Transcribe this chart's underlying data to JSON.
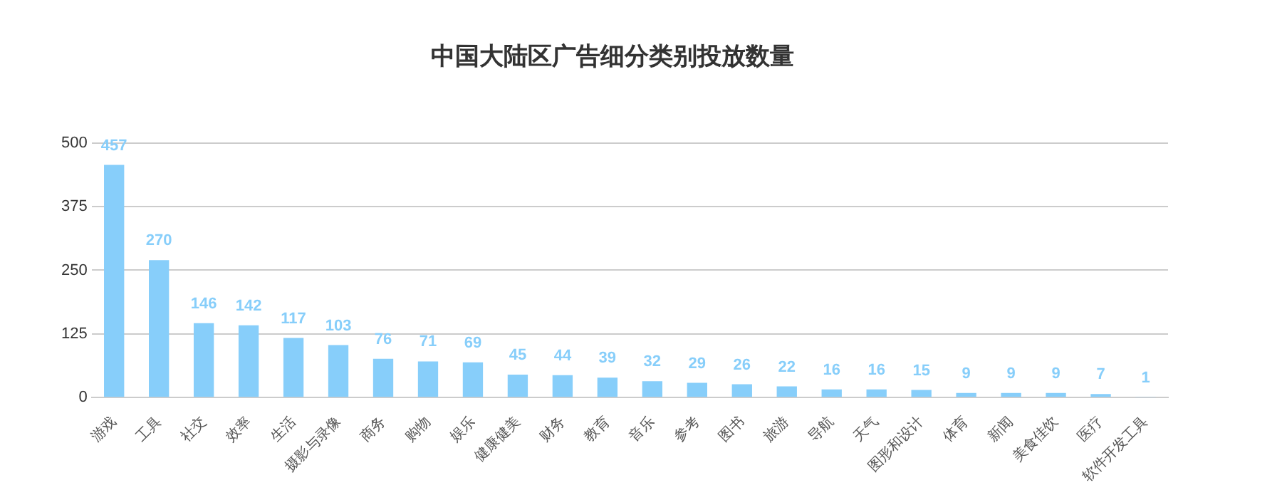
{
  "chart_data": {
    "type": "bar",
    "title": "中国大陆区广告细分类别投放数量",
    "categories": [
      "游戏",
      "工具",
      "社交",
      "效率",
      "生活",
      "摄影与录像",
      "商务",
      "购物",
      "娱乐",
      "健康健美",
      "财务",
      "教育",
      "音乐",
      "参考",
      "图书",
      "旅游",
      "导航",
      "天气",
      "图形和设计",
      "体育",
      "新闻",
      "美食佳饮",
      "医疗",
      "软件开发工具"
    ],
    "values": [
      457,
      270,
      146,
      142,
      117,
      103,
      76,
      71,
      69,
      45,
      44,
      39,
      32,
      29,
      26,
      22,
      16,
      16,
      15,
      9,
      9,
      9,
      7,
      1
    ],
    "color": "#87cefa",
    "ylim": [
      0,
      500
    ],
    "yticks": [
      0,
      125,
      250,
      375,
      500
    ],
    "grid": "y",
    "data_labels": true,
    "legend": false
  }
}
